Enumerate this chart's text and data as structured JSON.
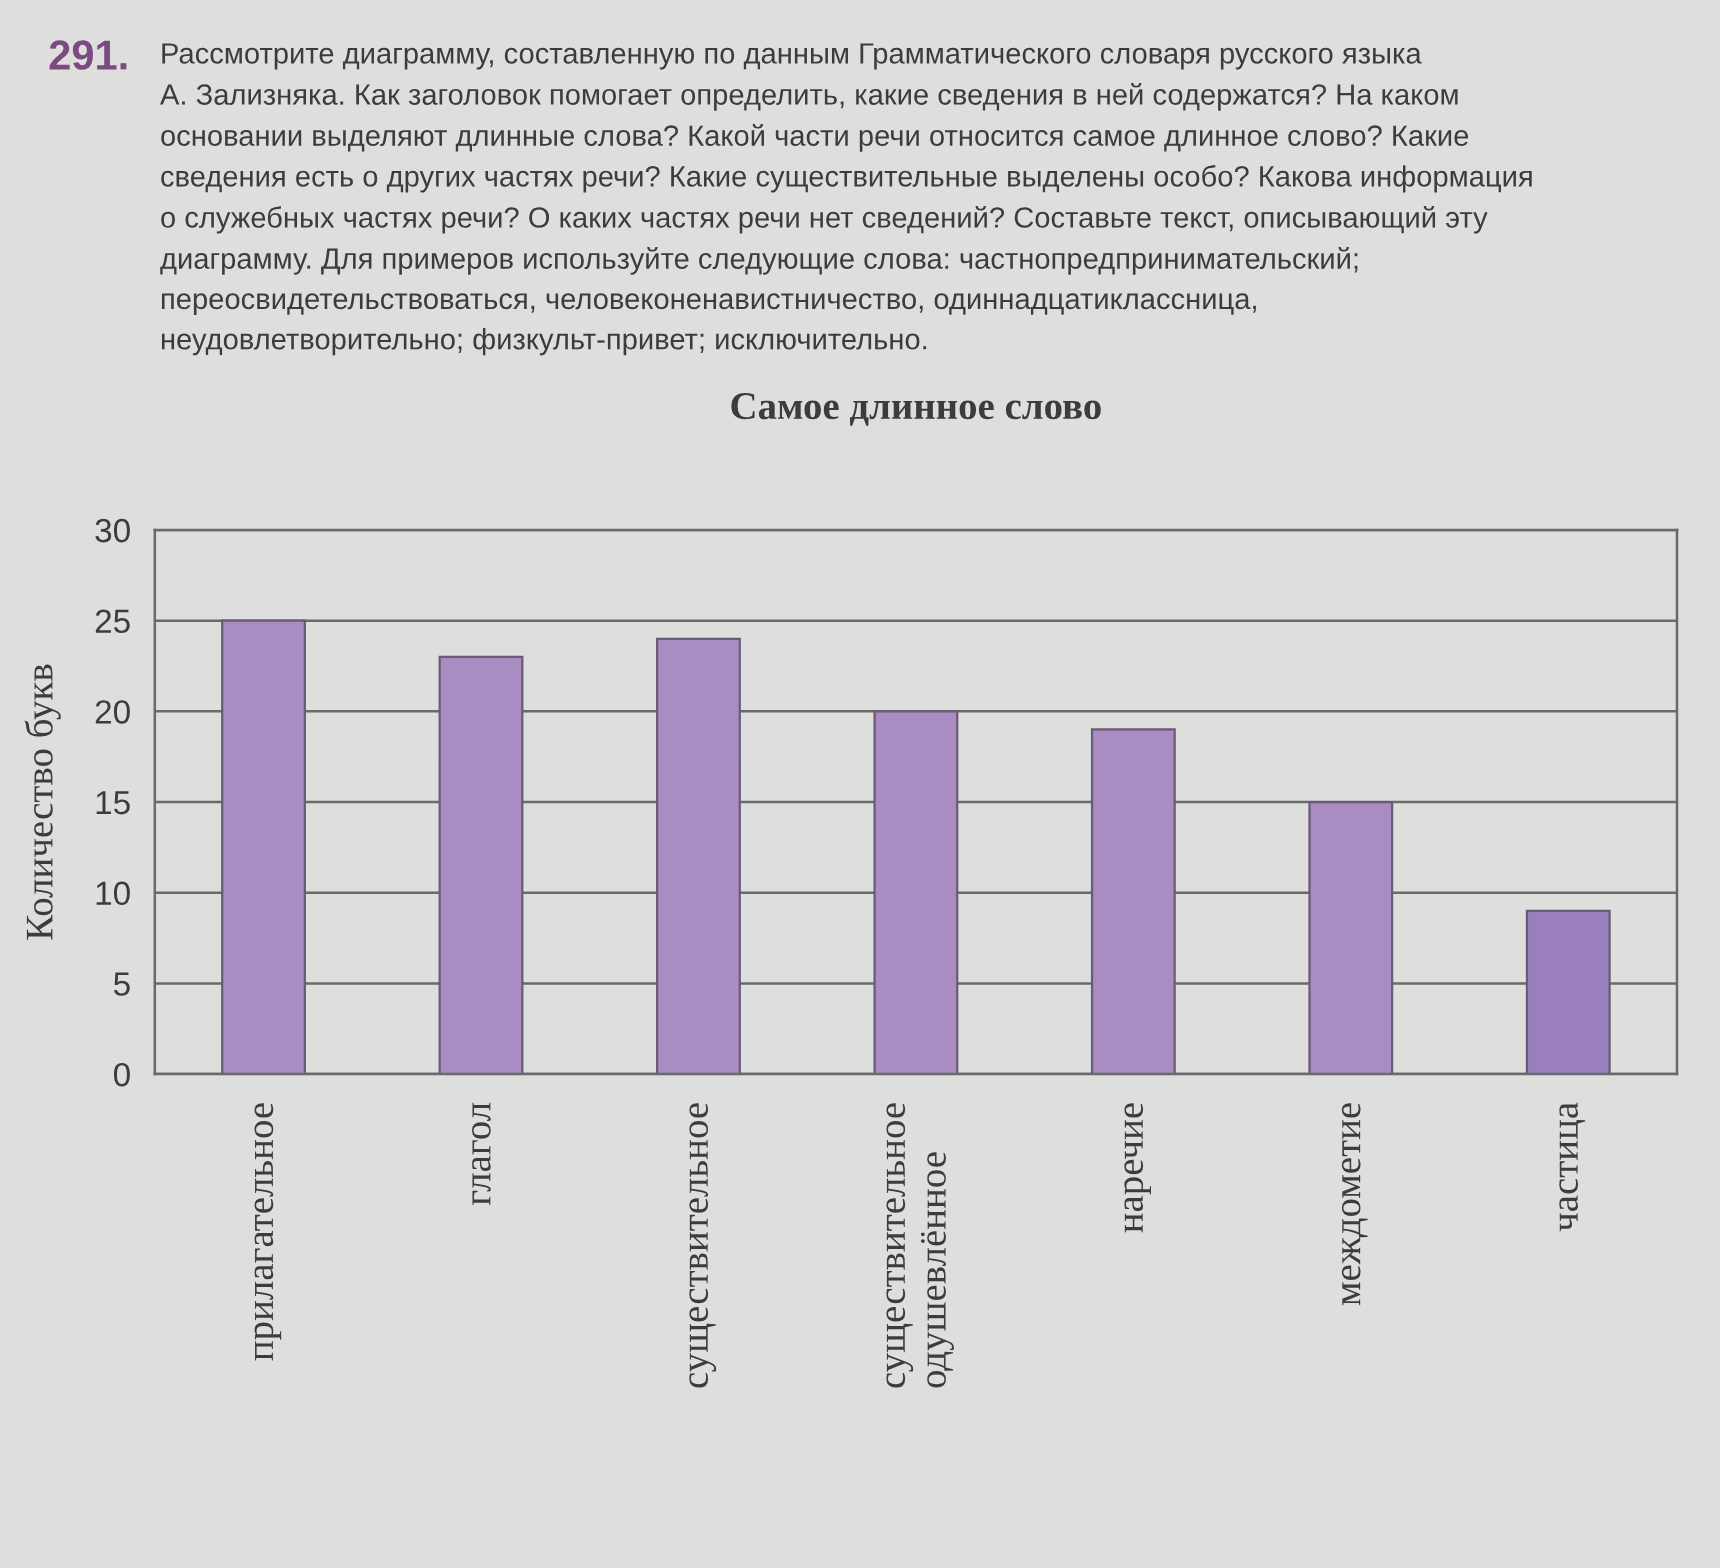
{
  "chart_data": {
    "type": "bar",
    "title": "Самое длинное слово",
    "ylabel": "Количество букв",
    "annotations": [
      "291.",
      "Рассмотрите диаграмму, составленную по данным Грамматического словаря русского языка\nА. Зализняка. Как заголовок помогает определить, какие сведения в ней содержатся? На каком\nосновании выделяют длинные слова? Какой части речи относится самое длинное слово? Какие\nсведения есть о других частях речи? Какие существительные выделены особо? Какова информация\nо служебных частях речи? О каких частях речи нет сведений? Составьте текст, описывающий эту\nдиаграмму. Для примеров используйте следующие слова: частнопредпринимательский;\nпереосвидетельствоваться, человеконенавистничество, одиннадцатиклассница,\nнеудовлетворительно; физкульт-привет; исключительно."
    ],
    "categories": [
      "прилагательное",
      "глагол",
      "существительное",
      "существительное\nодушевлённое",
      "наречие",
      "междометие",
      "частица"
    ],
    "values": [
      25,
      23,
      24,
      20,
      19,
      15,
      9
    ],
    "colors": [
      "#a98cc2",
      "#a98cc2",
      "#a98cc2",
      "#a98cc2",
      "#a98cc2",
      "#a98cc2",
      "#9a7fbe"
    ],
    "ylim": [
      0,
      30
    ],
    "yticks": [
      0,
      5,
      10,
      15,
      20,
      25,
      30
    ],
    "grid": "y"
  }
}
